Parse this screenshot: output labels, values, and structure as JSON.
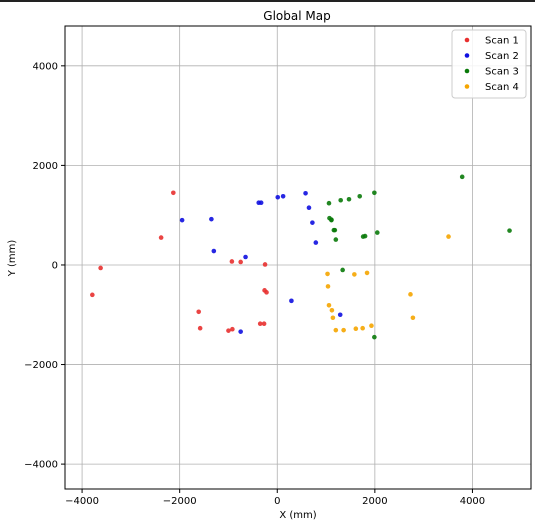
{
  "chart_data": {
    "type": "scatter",
    "title": "Global Map",
    "xlabel": "X (mm)",
    "ylabel": "Y (mm)",
    "xlim": [
      -4350,
      5200
    ],
    "ylim": [
      -4500,
      4800
    ],
    "xticks": [
      -4000,
      -2000,
      0,
      2000,
      4000
    ],
    "yticks": [
      -4000,
      -2000,
      0,
      2000,
      4000
    ],
    "xtick_labels": [
      "−4000",
      "−2000",
      "0",
      "2000",
      "4000"
    ],
    "ytick_labels": [
      "−4000",
      "−2000",
      "0",
      "2000",
      "4000"
    ],
    "grid": true,
    "legend_position": "top-right",
    "series": [
      {
        "name": "Scan 1",
        "color": "#e8302f",
        "points": [
          [
            -2130,
            1450
          ],
          [
            -2380,
            550
          ],
          [
            -3620,
            -60
          ],
          [
            -3790,
            -600
          ],
          [
            -1610,
            -940
          ],
          [
            -1580,
            -1270
          ],
          [
            -1000,
            -1320
          ],
          [
            -920,
            -1290
          ],
          [
            -930,
            70
          ],
          [
            -750,
            60
          ],
          [
            -250,
            10
          ],
          [
            -260,
            -510
          ],
          [
            -220,
            -550
          ],
          [
            -350,
            -1180
          ],
          [
            -270,
            -1180
          ]
        ]
      },
      {
        "name": "Scan 2",
        "color": "#1010e0",
        "points": [
          [
            -1950,
            900
          ],
          [
            -1350,
            920
          ],
          [
            -1300,
            280
          ],
          [
            -650,
            160
          ],
          [
            -380,
            1250
          ],
          [
            -330,
            1250
          ],
          [
            10,
            1360
          ],
          [
            120,
            1380
          ],
          [
            580,
            1440
          ],
          [
            650,
            1150
          ],
          [
            720,
            850
          ],
          [
            790,
            450
          ],
          [
            290,
            -720
          ],
          [
            -750,
            -1340
          ],
          [
            1290,
            -1000
          ]
        ]
      },
      {
        "name": "Scan 3",
        "color": "#0a7a0a",
        "points": [
          [
            1060,
            1240
          ],
          [
            1300,
            1300
          ],
          [
            1470,
            1320
          ],
          [
            1690,
            1380
          ],
          [
            1990,
            1450
          ],
          [
            3790,
            1770
          ],
          [
            4760,
            690
          ],
          [
            1070,
            940
          ],
          [
            1110,
            910
          ],
          [
            1110,
            900
          ],
          [
            1160,
            700
          ],
          [
            1180,
            700
          ],
          [
            1760,
            570
          ],
          [
            1800,
            580
          ],
          [
            2050,
            650
          ],
          [
            1200,
            510
          ],
          [
            1340,
            -100
          ],
          [
            1990,
            -1450
          ]
        ]
      },
      {
        "name": "Scan 4",
        "color": "#f5a500",
        "points": [
          [
            3510,
            570
          ],
          [
            1030,
            -180
          ],
          [
            1040,
            -430
          ],
          [
            1060,
            -810
          ],
          [
            1120,
            -910
          ],
          [
            1140,
            -1060
          ],
          [
            1200,
            -1310
          ],
          [
            1360,
            -1310
          ],
          [
            1580,
            -190
          ],
          [
            1840,
            -160
          ],
          [
            1610,
            -1280
          ],
          [
            1750,
            -1270
          ],
          [
            1930,
            -1220
          ],
          [
            2730,
            -590
          ],
          [
            2780,
            -1060
          ]
        ]
      }
    ]
  }
}
